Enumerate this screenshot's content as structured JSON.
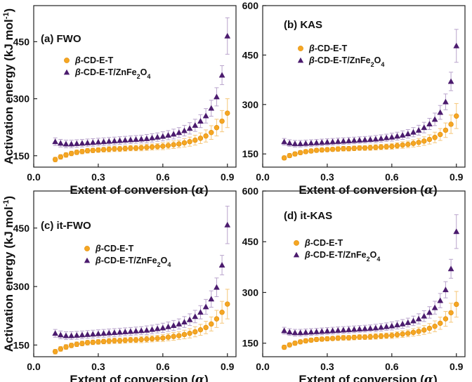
{
  "figure": {
    "background": "#ffffff"
  },
  "series_styles": {
    "beta_cd_e_t": {
      "color": "#f5a623",
      "marker": "circle",
      "error_color": "#f5c77a"
    },
    "beta_cd_e_t_znfe2o4": {
      "color": "#4b1b6e",
      "marker": "triangle",
      "error_color": "#b9a4cc"
    }
  },
  "chart_data": [
    {
      "type": "scatter",
      "panel_label": "(a) FWO",
      "xlabel": "Extent of conversion (α)",
      "xlabel_main": "Extent of conversion (",
      "xlabel_symbol": "α",
      "xlabel_end": ")",
      "ylabel": "Activation energy (kJ mol⁻¹)",
      "ylabel_main": "Activation energy (kJ mol",
      "ylabel_sup": "-1",
      "ylabel_end": ")",
      "xlim": [
        0.0,
        0.94
      ],
      "ylim": [
        120,
        545
      ],
      "xticks": [
        "0.0",
        "0.3",
        "0.6",
        "0.9"
      ],
      "xtick_values": [
        0.0,
        0.3,
        0.6,
        0.9
      ],
      "yticks": [
        "150",
        "300",
        "450"
      ],
      "ytick_values": [
        150,
        300,
        450
      ],
      "x": [
        0.1,
        0.125,
        0.15,
        0.175,
        0.2,
        0.225,
        0.25,
        0.275,
        0.3,
        0.325,
        0.35,
        0.375,
        0.4,
        0.425,
        0.45,
        0.475,
        0.5,
        0.525,
        0.55,
        0.575,
        0.6,
        0.625,
        0.65,
        0.675,
        0.7,
        0.725,
        0.75,
        0.775,
        0.8,
        0.825,
        0.85,
        0.875,
        0.9
      ],
      "series": [
        {
          "name": "β-CD-E-T",
          "legend_prefix": "β",
          "legend_rest": "-CD-E-T",
          "legend_sub": "",
          "legend_end": "",
          "style": "beta_cd_e_t",
          "values": [
            140,
            147,
            152,
            156,
            159,
            161,
            163,
            164,
            165,
            166,
            167,
            168,
            168,
            169,
            170,
            170,
            171,
            172,
            173,
            174,
            175,
            177,
            179,
            181,
            184,
            187,
            191,
            196,
            202,
            211,
            224,
            241,
            262
          ],
          "errors": [
            6,
            6,
            6,
            6,
            6,
            6,
            6,
            6,
            6,
            6,
            7,
            7,
            7,
            7,
            7,
            7,
            8,
            8,
            8,
            8,
            9,
            9,
            10,
            10,
            11,
            12,
            13,
            14,
            16,
            18,
            22,
            28,
            38
          ]
        },
        {
          "name": "β-CD-E-T/ZnFe₂O₄",
          "legend_prefix": "β",
          "legend_rest": "-CD-E-T/ZnFe",
          "legend_sub": "2",
          "legend_end": "O",
          "legend_sub2": "4",
          "style": "beta_cd_e_t_znfe2o4",
          "values": [
            187,
            183,
            181,
            181,
            182,
            183,
            184,
            185,
            186,
            187,
            188,
            189,
            190,
            191,
            192,
            193,
            194,
            195,
            197,
            199,
            201,
            204,
            207,
            211,
            216,
            222,
            230,
            241,
            255,
            275,
            305,
            362,
            465
          ],
          "errors": [
            10,
            10,
            10,
            10,
            10,
            10,
            10,
            10,
            10,
            10,
            10,
            10,
            10,
            10,
            10,
            10,
            10,
            11,
            11,
            11,
            12,
            12,
            13,
            13,
            14,
            15,
            16,
            17,
            19,
            21,
            24,
            25,
            48
          ]
        }
      ]
    },
    {
      "type": "scatter",
      "panel_label": "(b) KAS",
      "xlabel": "Extent of conversion (α)",
      "xlabel_main": "Extent of conversion (",
      "xlabel_symbol": "α",
      "xlabel_end": ")",
      "ylabel": "",
      "xlim": [
        0.0,
        0.94
      ],
      "ylim": [
        110,
        600
      ],
      "xticks": [
        "0.0",
        "0.3",
        "0.6",
        "0.9"
      ],
      "xtick_values": [
        0.0,
        0.3,
        0.6,
        0.9
      ],
      "yticks": [
        "150",
        "300",
        "450",
        "600"
      ],
      "ytick_values": [
        150,
        300,
        450,
        600
      ],
      "x": [
        0.1,
        0.125,
        0.15,
        0.175,
        0.2,
        0.225,
        0.25,
        0.275,
        0.3,
        0.325,
        0.35,
        0.375,
        0.4,
        0.425,
        0.45,
        0.475,
        0.5,
        0.525,
        0.55,
        0.575,
        0.6,
        0.625,
        0.65,
        0.675,
        0.7,
        0.725,
        0.75,
        0.775,
        0.8,
        0.825,
        0.85,
        0.875,
        0.9
      ],
      "series": [
        {
          "name": "β-CD-E-T",
          "legend_prefix": "β",
          "legend_rest": "-CD-E-T",
          "legend_sub": "",
          "legend_end": "",
          "style": "beta_cd_e_t",
          "values": [
            138,
            145,
            150,
            154,
            157,
            159,
            161,
            162,
            163,
            164,
            165,
            166,
            166,
            167,
            168,
            168,
            169,
            170,
            171,
            172,
            173,
            175,
            177,
            179,
            182,
            185,
            189,
            194,
            200,
            209,
            222,
            240,
            265
          ],
          "errors": [
            6,
            6,
            6,
            6,
            6,
            6,
            6,
            6,
            6,
            6,
            7,
            7,
            7,
            7,
            7,
            7,
            8,
            8,
            8,
            8,
            9,
            9,
            10,
            10,
            11,
            12,
            13,
            14,
            16,
            18,
            22,
            28,
            38
          ]
        },
        {
          "name": "β-CD-E-T/ZnFe₂O₄",
          "legend_prefix": "β",
          "legend_rest": "-CD-E-T/ZnFe",
          "legend_sub": "2",
          "legend_end": "O",
          "legend_sub2": "4",
          "style": "beta_cd_e_t_znfe2o4",
          "values": [
            187,
            183,
            181,
            181,
            182,
            183,
            184,
            185,
            186,
            187,
            188,
            189,
            190,
            191,
            192,
            193,
            194,
            195,
            197,
            199,
            201,
            204,
            207,
            211,
            216,
            222,
            230,
            241,
            255,
            276,
            308,
            370,
            478
          ],
          "errors": [
            10,
            10,
            10,
            10,
            10,
            10,
            10,
            10,
            10,
            10,
            10,
            10,
            10,
            10,
            10,
            10,
            10,
            11,
            11,
            11,
            12,
            12,
            13,
            13,
            14,
            15,
            16,
            17,
            19,
            21,
            24,
            28,
            50
          ]
        }
      ]
    },
    {
      "type": "scatter",
      "panel_label": "(c) it-FWO",
      "xlabel": "Extent of conversion (α)",
      "xlabel_main": "Extent of conversion (",
      "xlabel_symbol": "α",
      "xlabel_end": ")",
      "ylabel": "Activation energy (kJ mol⁻¹)",
      "ylabel_main": "Activation energy (kJ mol",
      "ylabel_sup": "-1",
      "ylabel_end": ")",
      "xlim": [
        0.0,
        0.94
      ],
      "ylim": [
        120,
        545
      ],
      "xticks": [
        "0.0",
        "0.3",
        "0.6",
        "0.9"
      ],
      "xtick_values": [
        0.0,
        0.3,
        0.6,
        0.9
      ],
      "yticks": [
        "150",
        "300",
        "450"
      ],
      "ytick_values": [
        150,
        300,
        450
      ],
      "x": [
        0.1,
        0.125,
        0.15,
        0.175,
        0.2,
        0.225,
        0.25,
        0.275,
        0.3,
        0.325,
        0.35,
        0.375,
        0.4,
        0.425,
        0.45,
        0.475,
        0.5,
        0.525,
        0.55,
        0.575,
        0.6,
        0.625,
        0.65,
        0.675,
        0.7,
        0.725,
        0.75,
        0.775,
        0.8,
        0.825,
        0.85,
        0.875,
        0.9
      ],
      "series": [
        {
          "name": "β-CD-E-T",
          "legend_prefix": "β",
          "legend_rest": "-CD-E-T",
          "legend_sub": "",
          "legend_end": "",
          "style": "beta_cd_e_t",
          "values": [
            133,
            140,
            145,
            149,
            152,
            154,
            156,
            157,
            158,
            159,
            160,
            161,
            161,
            162,
            163,
            163,
            164,
            165,
            166,
            167,
            168,
            170,
            172,
            174,
            177,
            180,
            184,
            189,
            195,
            204,
            217,
            234,
            255
          ],
          "errors": [
            6,
            6,
            6,
            6,
            6,
            6,
            6,
            6,
            6,
            6,
            7,
            7,
            7,
            7,
            7,
            7,
            8,
            8,
            8,
            8,
            9,
            9,
            10,
            10,
            11,
            12,
            13,
            14,
            16,
            18,
            22,
            28,
            38
          ]
        },
        {
          "name": "β-CD-E-T/ZnFe₂O₄",
          "legend_prefix": "β",
          "legend_rest": "-CD-E-T/ZnFe",
          "legend_sub": "2",
          "legend_end": "O",
          "legend_sub2": "4",
          "style": "beta_cd_e_t_znfe2o4",
          "values": [
            180,
            176,
            174,
            174,
            175,
            176,
            177,
            178,
            179,
            180,
            181,
            182,
            183,
            184,
            185,
            186,
            187,
            188,
            190,
            192,
            194,
            197,
            200,
            204,
            209,
            215,
            223,
            234,
            248,
            268,
            298,
            355,
            458
          ],
          "errors": [
            10,
            10,
            10,
            10,
            10,
            10,
            10,
            10,
            10,
            10,
            10,
            10,
            10,
            10,
            10,
            10,
            10,
            11,
            11,
            11,
            12,
            12,
            13,
            13,
            14,
            15,
            16,
            17,
            19,
            21,
            24,
            25,
            48
          ]
        }
      ]
    },
    {
      "type": "scatter",
      "panel_label": "(d) it-KAS",
      "xlabel": "Extent of conversion (α)",
      "xlabel_main": "Extent of conversion (",
      "xlabel_symbol": "α",
      "xlabel_end": ")",
      "ylabel": "",
      "xlim": [
        0.0,
        0.94
      ],
      "ylim": [
        110,
        600
      ],
      "xticks": [
        "0.0",
        "0.3",
        "0.6",
        "0.9"
      ],
      "xtick_values": [
        0.0,
        0.3,
        0.6,
        0.9
      ],
      "yticks": [
        "150",
        "300",
        "450",
        "600"
      ],
      "ytick_values": [
        150,
        300,
        450,
        600
      ],
      "x": [
        0.1,
        0.125,
        0.15,
        0.175,
        0.2,
        0.225,
        0.25,
        0.275,
        0.3,
        0.325,
        0.35,
        0.375,
        0.4,
        0.425,
        0.45,
        0.475,
        0.5,
        0.525,
        0.55,
        0.575,
        0.6,
        0.625,
        0.65,
        0.675,
        0.7,
        0.725,
        0.75,
        0.775,
        0.8,
        0.825,
        0.85,
        0.875,
        0.9
      ],
      "series": [
        {
          "name": "β-CD-E-T",
          "legend_prefix": "β",
          "legend_rest": "-CD-E-T",
          "legend_sub": "",
          "legend_end": "",
          "style": "beta_cd_e_t",
          "values": [
            138,
            145,
            150,
            154,
            157,
            159,
            161,
            162,
            163,
            164,
            165,
            166,
            166,
            167,
            168,
            168,
            169,
            170,
            171,
            172,
            173,
            175,
            177,
            179,
            182,
            185,
            189,
            194,
            200,
            209,
            222,
            240,
            265
          ],
          "errors": [
            6,
            6,
            6,
            6,
            6,
            6,
            6,
            6,
            6,
            6,
            7,
            7,
            7,
            7,
            7,
            7,
            8,
            8,
            8,
            8,
            9,
            9,
            10,
            10,
            11,
            12,
            13,
            14,
            16,
            18,
            22,
            28,
            38
          ]
        },
        {
          "name": "β-CD-E-T/ZnFe₂O₄",
          "legend_prefix": "β",
          "legend_rest": "-CD-E-T/ZnFe",
          "legend_sub": "2",
          "legend_end": "O",
          "legend_sub2": "4",
          "style": "beta_cd_e_t_znfe2o4",
          "values": [
            187,
            183,
            181,
            181,
            182,
            183,
            184,
            185,
            186,
            187,
            188,
            189,
            190,
            191,
            192,
            193,
            194,
            195,
            197,
            199,
            201,
            204,
            207,
            211,
            216,
            222,
            230,
            241,
            255,
            276,
            308,
            370,
            480
          ],
          "errors": [
            10,
            10,
            10,
            10,
            10,
            10,
            10,
            10,
            10,
            10,
            10,
            10,
            10,
            10,
            10,
            10,
            10,
            11,
            11,
            11,
            12,
            12,
            13,
            13,
            14,
            15,
            16,
            17,
            19,
            21,
            24,
            28,
            50
          ]
        }
      ]
    }
  ]
}
